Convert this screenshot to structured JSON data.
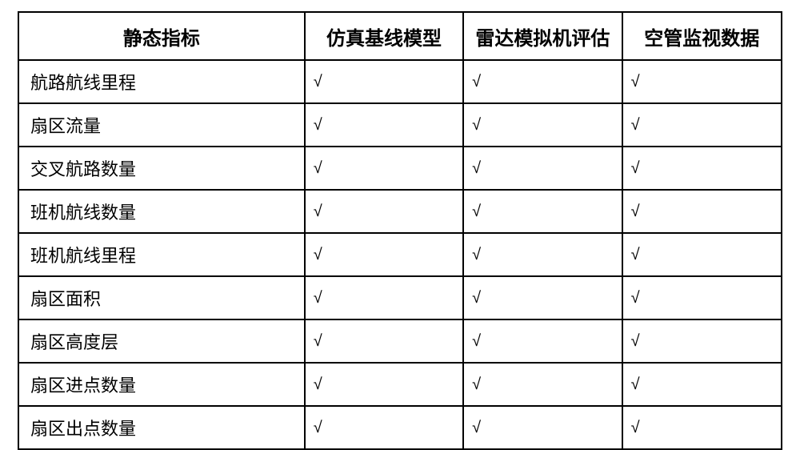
{
  "table": {
    "type": "table",
    "border_color": "#000000",
    "background_color": "#ffffff",
    "text_color": "#000000",
    "header_font_family": "KaiTi",
    "header_fontsize_pt": 18,
    "header_fontweight": "bold",
    "body_font_family": "KaiTi",
    "body_fontsize_pt": 16,
    "check_mark": "√",
    "column_widths_pct": [
      37.5,
      20.8,
      20.8,
      20.9
    ],
    "columns": [
      "静态指标",
      "仿真基线模型",
      "雷达模拟机评估",
      "空管监视数据"
    ],
    "rows": [
      {
        "label": "航路航线里程",
        "cells": [
          "√",
          "√",
          "√"
        ]
      },
      {
        "label": "扇区流量",
        "cells": [
          "√",
          "√",
          "√"
        ]
      },
      {
        "label": "交叉航路数量",
        "cells": [
          "√",
          "√",
          "√"
        ]
      },
      {
        "label": "班机航线数量",
        "cells": [
          "√",
          "√",
          "√"
        ]
      },
      {
        "label": "班机航线里程",
        "cells": [
          "√",
          "√",
          "√"
        ]
      },
      {
        "label": "扇区面积",
        "cells": [
          "√",
          "√",
          "√"
        ]
      },
      {
        "label": "扇区高度层",
        "cells": [
          "√",
          "√",
          "√"
        ]
      },
      {
        "label": "扇区进点数量",
        "cells": [
          "√",
          "√",
          "√"
        ]
      },
      {
        "label": "扇区出点数量",
        "cells": [
          "√",
          "√",
          "√"
        ]
      }
    ]
  }
}
